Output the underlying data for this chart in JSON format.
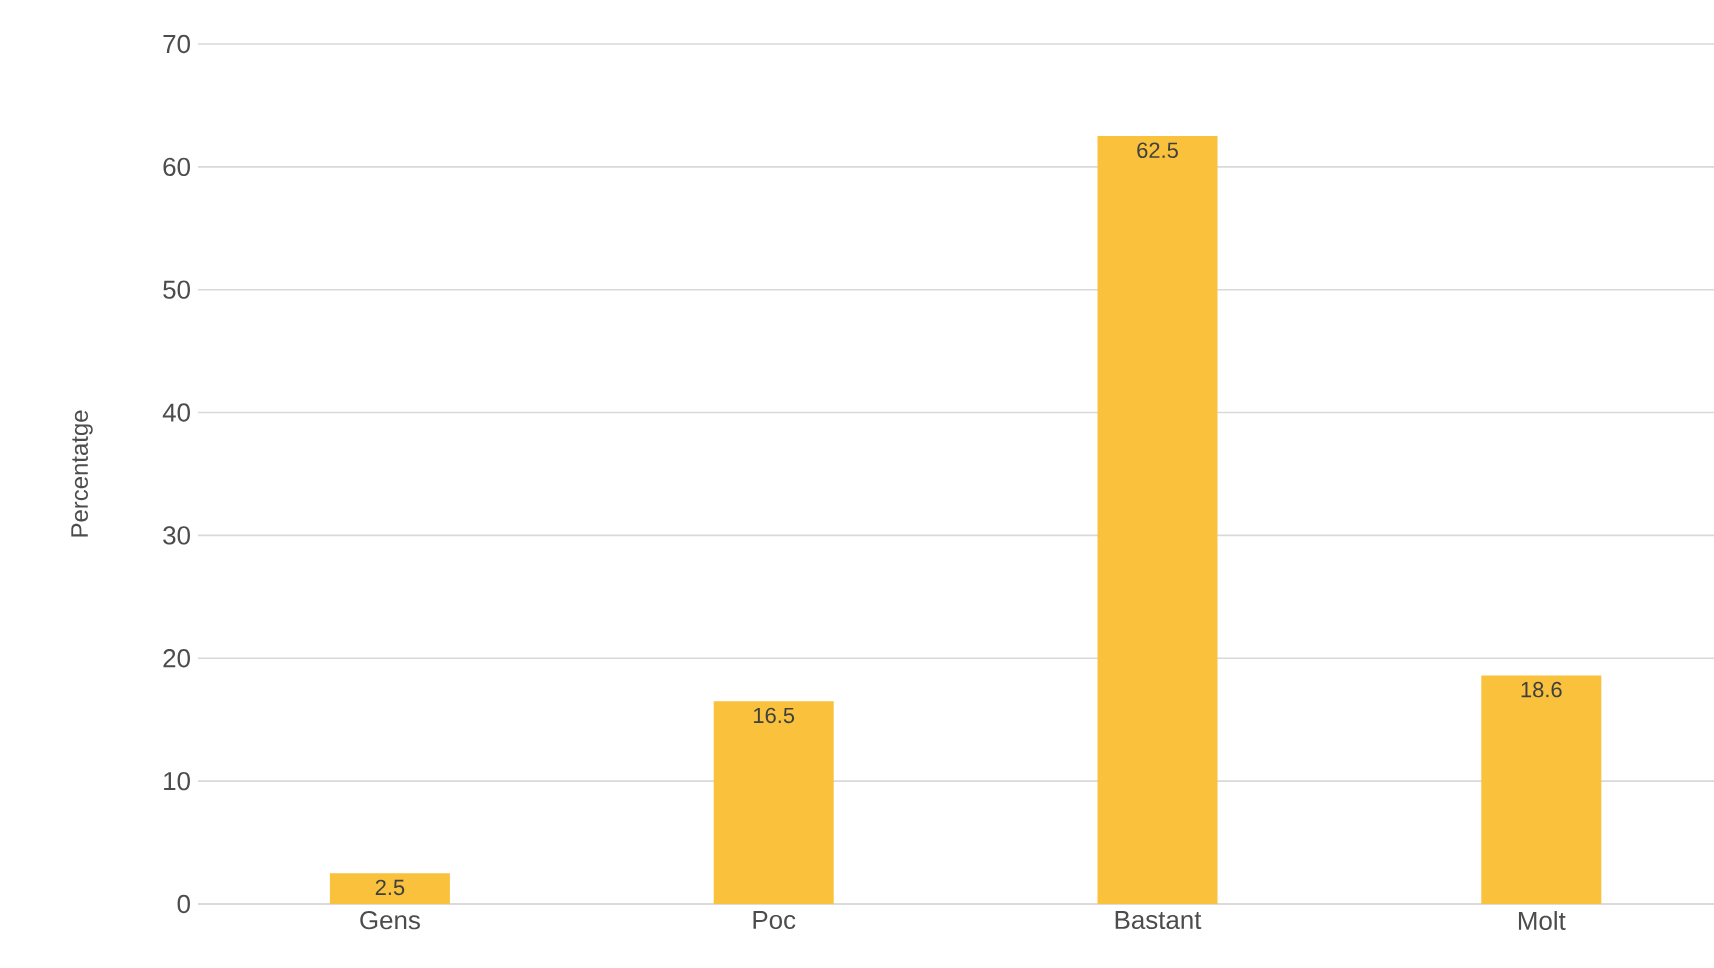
{
  "chart_data": {
    "type": "bar",
    "ylabel": "Percentatge",
    "categories": [
      "Gens",
      "Poc",
      "Bastant",
      "Molt"
    ],
    "values": [
      2.5,
      16.5,
      62.5,
      18.6
    ],
    "color": "#f9c13c",
    "ylim": [
      0,
      70
    ],
    "yticks": [
      0,
      10,
      20,
      30,
      40,
      50,
      60,
      70
    ],
    "grid": "y",
    "data_labels": true
  }
}
